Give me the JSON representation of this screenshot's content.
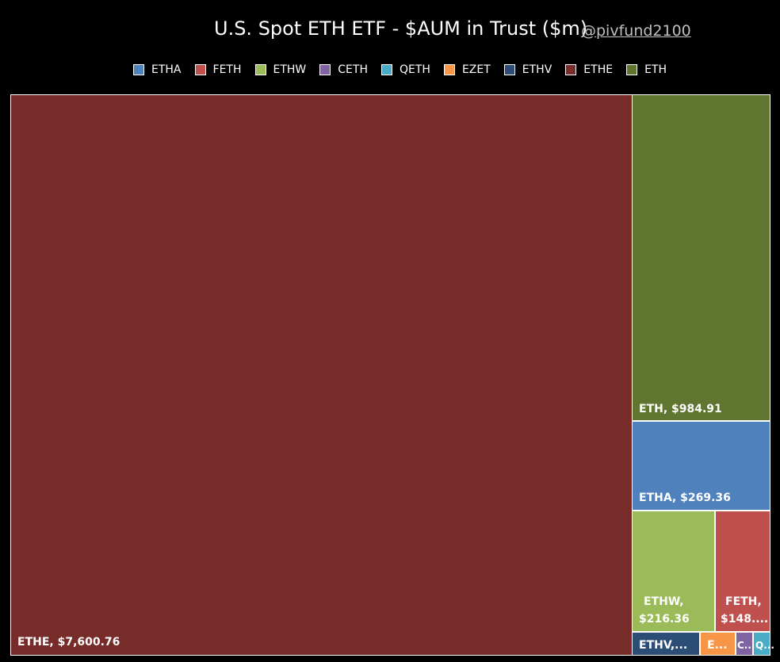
{
  "title": "U.S. Spot ETH ETF - $AUM in Trust ($m)",
  "handle": "@pivfund2100",
  "chart_data": {
    "type": "treemap",
    "title": "U.S. Spot ETH ETF - $AUM in Trust ($m)",
    "legend_position": "top",
    "legend": [
      {
        "name": "ETHA",
        "color": "#4f81bd"
      },
      {
        "name": "FETH",
        "color": "#c0504d"
      },
      {
        "name": "ETHW",
        "color": "#9bbb59"
      },
      {
        "name": "CETH",
        "color": "#8064a2"
      },
      {
        "name": "QETH",
        "color": "#4bacc6"
      },
      {
        "name": "EZET",
        "color": "#f79646"
      },
      {
        "name": "ETHV",
        "color": "#2c4d75"
      },
      {
        "name": "ETHE",
        "color": "#772c2a"
      },
      {
        "name": "ETH",
        "color": "#5f7530"
      }
    ],
    "items": [
      {
        "name": "ETHE",
        "value": 7600.76,
        "label": "ETHE, $7,600.76",
        "color": "#772c2a"
      },
      {
        "name": "ETH",
        "value": 984.91,
        "label": "ETH, $984.91",
        "color": "#5f7530"
      },
      {
        "name": "ETHA",
        "value": 269.36,
        "label": "ETHA, $269.36",
        "color": "#4f81bd"
      },
      {
        "name": "ETHW",
        "value": 216.36,
        "label_lines": [
          "ETHW,",
          "$216.36"
        ],
        "color": "#9bbb59"
      },
      {
        "name": "FETH",
        "value": 148,
        "label_lines": [
          "FETH,",
          "$148...."
        ],
        "color": "#c0504d"
      },
      {
        "name": "ETHV",
        "value": null,
        "label": "ETHV,...",
        "color": "#2c4d75"
      },
      {
        "name": "EZET",
        "value": null,
        "label": "E...",
        "color": "#f79646"
      },
      {
        "name": "CETH",
        "value": null,
        "label": "C...",
        "color": "#8064a2"
      },
      {
        "name": "QETH",
        "value": null,
        "label": "Q...",
        "color": "#4bacc6"
      }
    ]
  }
}
